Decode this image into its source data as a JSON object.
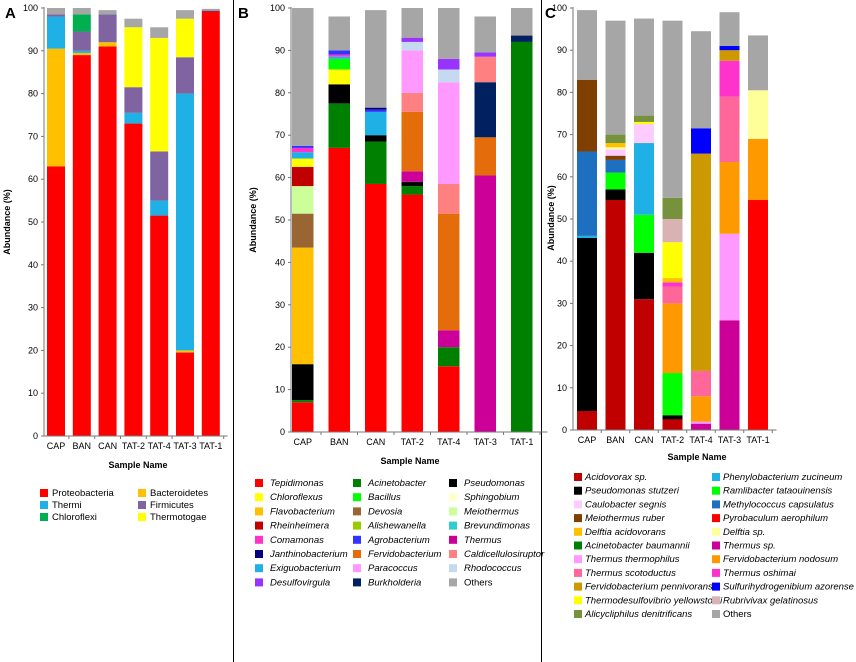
{
  "categories": [
    "CAP",
    "BAN",
    "CAN",
    "TAT-2",
    "TAT-4",
    "TAT-3",
    "TAT-1"
  ],
  "chart_data": [
    {
      "panel": "A",
      "type": "bar",
      "stacked": true,
      "ylabel": "Abundance (%)",
      "xlabel": "Sample Name",
      "ylim": [
        0,
        100
      ],
      "yticks": [
        0,
        10,
        20,
        30,
        40,
        50,
        60,
        70,
        80,
        90,
        100
      ],
      "grid": false,
      "legend_position": "bottom",
      "categories": [
        "CAP",
        "BAN",
        "CAN",
        "TAT-2",
        "TAT-4",
        "TAT-3",
        "TAT-1"
      ],
      "series": [
        {
          "name": "Proteobacteria",
          "color": "#ff0000",
          "values": [
            63,
            89,
            91,
            73,
            51.5,
            19.5,
            99.3
          ]
        },
        {
          "name": "Bacteroidetes",
          "color": "#ffc000",
          "values": [
            27.5,
            0.5,
            1,
            0,
            0,
            0.5,
            0
          ]
        },
        {
          "name": "Thermi",
          "color": "#1fb1e6",
          "values": [
            7.5,
            0.5,
            0,
            2.5,
            3.5,
            60,
            0.2
          ]
        },
        {
          "name": "Firmicutes",
          "color": "#8064a2",
          "values": [
            0.5,
            4.5,
            6.5,
            6,
            11.5,
            8.5,
            0
          ]
        },
        {
          "name": "Chloroflexi",
          "color": "#00b050",
          "values": [
            0,
            4,
            0,
            0,
            0,
            0,
            0
          ]
        },
        {
          "name": "Thermotogae",
          "color": "#ffff00",
          "values": [
            0,
            0,
            0,
            14,
            26.5,
            9,
            0
          ]
        },
        {
          "name": "Others",
          "color": "#a6a6a6",
          "values": [
            1.5,
            1.5,
            1,
            2,
            2.5,
            2,
            0.3
          ]
        }
      ],
      "legend": [
        "Proteobacteria",
        "Bacteroidetes",
        "Thermi",
        "Firmicutes",
        "Chloroflexi",
        "Thermotogae"
      ]
    },
    {
      "panel": "B",
      "type": "bar",
      "stacked": true,
      "ylabel": "Abundance (%)",
      "xlabel": "Sample Name",
      "ylim": [
        0,
        100
      ],
      "yticks": [
        0,
        10,
        20,
        30,
        40,
        50,
        60,
        70,
        80,
        90,
        100
      ],
      "grid": false,
      "legend_position": "bottom",
      "categories": [
        "CAP",
        "BAN",
        "CAN",
        "TAT-2",
        "TAT-4",
        "TAT-3",
        "TAT-1"
      ],
      "series": [
        {
          "name": "Tepidimonas",
          "color": "#ff0000",
          "values": [
            7,
            67,
            58.5,
            56,
            15.5,
            0,
            0
          ]
        },
        {
          "name": "Acinetobacter",
          "color": "#008000",
          "values": [
            0.5,
            10.5,
            10,
            2,
            4.5,
            0,
            92
          ]
        },
        {
          "name": "Pseudomonas",
          "color": "#000000",
          "values": [
            8.5,
            4.5,
            1.5,
            1,
            0,
            0,
            0
          ]
        },
        {
          "name": "Thermus",
          "color": "#cc0099",
          "values": [
            0,
            0,
            0,
            2.5,
            4,
            60.5,
            0
          ]
        },
        {
          "name": "Flavobacterium",
          "color": "#ffc000",
          "values": [
            27.5,
            0,
            0,
            0,
            0,
            0,
            0
          ]
        },
        {
          "name": "Devosia",
          "color": "#996633",
          "values": [
            8,
            0,
            0,
            0,
            0,
            0,
            0
          ]
        },
        {
          "name": "Meiothermus",
          "color": "#ccff99",
          "values": [
            6.5,
            0,
            0,
            0,
            0,
            0,
            0
          ]
        },
        {
          "name": "Rheinheimera",
          "color": "#c00000",
          "values": [
            4.5,
            0,
            0,
            0,
            0,
            0,
            0
          ]
        },
        {
          "name": "Fervidobacterium",
          "color": "#e46c0a",
          "values": [
            0,
            0,
            0,
            14,
            27.5,
            9,
            0
          ]
        },
        {
          "name": "Burkholderia",
          "color": "#002060",
          "values": [
            0,
            0,
            0,
            0,
            0,
            13,
            1.5
          ]
        },
        {
          "name": "Caldicellulosiruptor",
          "color": "#ff8080",
          "values": [
            0,
            0,
            0,
            4.5,
            7,
            6,
            0
          ]
        },
        {
          "name": "Paracoccus",
          "color": "#ff99ff",
          "values": [
            0,
            0,
            0,
            10,
            24,
            0,
            0
          ]
        },
        {
          "name": "Rhodococcus",
          "color": "#c5d9f1",
          "values": [
            0,
            0,
            0,
            2,
            3,
            0,
            0
          ]
        },
        {
          "name": "Desulfovirgula",
          "color": "#9933ff",
          "values": [
            0,
            0,
            0,
            1,
            2.5,
            1,
            0
          ]
        },
        {
          "name": "Chloroflexus",
          "color": "#ffff00",
          "values": [
            2,
            3.5,
            0,
            0,
            0,
            0,
            0
          ]
        },
        {
          "name": "Bacillus",
          "color": "#00ff00",
          "values": [
            0,
            2.5,
            0,
            0,
            0,
            0,
            0
          ]
        },
        {
          "name": "Exiguobacterium",
          "color": "#1fb1e6",
          "values": [
            1.5,
            0.5,
            5.5,
            0,
            0,
            0,
            0
          ]
        },
        {
          "name": "Comamonas",
          "color": "#ff33cc",
          "values": [
            1,
            0.5,
            0,
            0,
            0,
            0,
            0
          ]
        },
        {
          "name": "Agrobacterium",
          "color": "#3333ff",
          "values": [
            0.5,
            1,
            0.5,
            0,
            0,
            0,
            0
          ]
        },
        {
          "name": "Janthinobacterium",
          "color": "#000080",
          "values": [
            0,
            0,
            0.5,
            0,
            0,
            0,
            0
          ]
        },
        {
          "name": "Sphingobium",
          "color": "#ffffcc",
          "values": [
            0,
            0,
            0,
            0,
            0,
            0,
            0
          ]
        },
        {
          "name": "Alishewanella",
          "color": "#99cc00",
          "values": [
            0,
            0,
            0,
            0,
            0,
            0,
            0
          ]
        },
        {
          "name": "Brevundimonas",
          "color": "#33cccc",
          "values": [
            0,
            0,
            0,
            0,
            0,
            0,
            0
          ]
        },
        {
          "name": "Others",
          "color": "#a6a6a6",
          "values": [
            32.5,
            8,
            23,
            7,
            12,
            8.5,
            6.5
          ]
        }
      ],
      "legend": [
        "Tepidimonas",
        "Acinetobacter",
        "Pseudomonas",
        "Chloroflexus",
        "Bacillus",
        "Sphingobium",
        "Flavobacterium",
        "Devosia",
        "Meiothermus",
        "Rheinheimera",
        "Alishewanella",
        "Brevundimonas",
        "Comamonas",
        "Agrobacterium",
        "Thermus",
        "Janthinobacterium",
        "Fervidobacterium",
        "Caldicellulosiruptor",
        "Exiguobacterium",
        "Paracoccus",
        "Rhodococcus",
        "Desulfovirgula",
        "Burkholderia",
        "Others"
      ]
    },
    {
      "panel": "C",
      "type": "bar",
      "stacked": true,
      "ylabel": "Abundance (%)",
      "xlabel": "Sample Name",
      "ylim": [
        0,
        100
      ],
      "yticks": [
        0,
        10,
        20,
        30,
        40,
        50,
        60,
        70,
        80,
        90,
        100
      ],
      "grid": false,
      "legend_position": "bottom",
      "categories": [
        "CAP",
        "BAN",
        "CAN",
        "TAT-2",
        "TAT-4",
        "TAT-3",
        "TAT-1"
      ],
      "series": [
        {
          "name": "Acidovorax sp.",
          "color": "#c00000",
          "values": [
            4.5,
            54.5,
            31,
            2.5,
            0,
            0,
            0
          ]
        },
        {
          "name": "Pyrobaculum aerophilum",
          "color": "#ff0000",
          "values": [
            0,
            0,
            0,
            0,
            0,
            0,
            54.5
          ]
        },
        {
          "name": "Pseudomonas stutzeri",
          "color": "#000000",
          "values": [
            41,
            2.5,
            11,
            1,
            0,
            0,
            0
          ]
        },
        {
          "name": "Acinetobacter baumannii",
          "color": "#008000",
          "values": [
            0,
            0,
            0,
            0,
            0,
            0,
            0
          ]
        },
        {
          "name": "Thermus sp.",
          "color": "#cc0099",
          "values": [
            0,
            0,
            0,
            0,
            1.5,
            26,
            0
          ]
        },
        {
          "name": "Ramlibacter tataouinensis",
          "color": "#00ff00",
          "values": [
            0,
            4,
            9,
            10,
            0,
            0,
            0
          ]
        },
        {
          "name": "Thermus thermophilus",
          "color": "#ff99ff",
          "values": [
            0,
            0,
            0,
            0,
            0.5,
            20.5,
            0
          ]
        },
        {
          "name": "Fervidobacterium nodosum",
          "color": "#ff9900",
          "values": [
            0,
            0,
            0,
            16.5,
            6,
            17,
            14.5
          ]
        },
        {
          "name": "Thermus scotoductus",
          "color": "#ff6699",
          "values": [
            0,
            0,
            0,
            4,
            6,
            15.5,
            0
          ]
        },
        {
          "name": "Phenylobacterium zucineum",
          "color": "#1fb1e6",
          "values": [
            0.5,
            0,
            17,
            0,
            0,
            0,
            0
          ]
        },
        {
          "name": "Methylococcus capsulatus",
          "color": "#1f6fc0",
          "values": [
            20,
            3,
            0,
            0,
            0,
            0,
            0
          ]
        },
        {
          "name": "Thermus oshimai",
          "color": "#ff33cc",
          "values": [
            0,
            0,
            0,
            1,
            0,
            8.5,
            0
          ]
        },
        {
          "name": "Fervidobacterium pennivorans",
          "color": "#cc9900",
          "values": [
            0,
            0,
            0,
            0,
            51.5,
            2.5,
            0
          ]
        },
        {
          "name": "Meiothermus ruber",
          "color": "#7f3f00",
          "values": [
            17,
            1,
            0,
            0,
            0,
            0,
            0
          ]
        },
        {
          "name": "Caulobacter segnis",
          "color": "#ffccff",
          "values": [
            0,
            1.5,
            4.5,
            0,
            0,
            0,
            0
          ]
        },
        {
          "name": "Delftia sp.",
          "color": "#ffff99",
          "values": [
            0,
            0.5,
            0,
            0,
            0,
            0,
            11.5
          ]
        },
        {
          "name": "Delftia acidovorans",
          "color": "#ffc000",
          "values": [
            0,
            1,
            0,
            1,
            0,
            0,
            0
          ]
        },
        {
          "name": "Sulfurihydrogenibium azorense",
          "color": "#0000ff",
          "values": [
            0,
            0,
            0,
            0,
            6,
            1,
            0
          ]
        },
        {
          "name": "Thermodesulfovibrio yellowstonii",
          "color": "#ffff00",
          "values": [
            0,
            0,
            0.5,
            8.5,
            0,
            0,
            0
          ]
        },
        {
          "name": "Rubrivivax gelatinosus",
          "color": "#d9b3b3",
          "values": [
            0,
            0,
            0,
            5.5,
            0,
            0,
            0
          ]
        },
        {
          "name": "Alicycliphilus denitrificans",
          "color": "#76923c",
          "values": [
            0,
            2,
            1.5,
            5,
            0,
            0,
            0
          ]
        },
        {
          "name": "Others",
          "color": "#a6a6a6",
          "values": [
            16.5,
            27,
            23,
            42,
            23,
            8,
            13
          ]
        }
      ],
      "legend": [
        "Acidovorax sp.",
        "Phenylobacterium zucineum",
        "Pseudomonas stutzeri",
        "Ramlibacter tataouinensis",
        "Caulobacter segnis",
        "Methylococcus capsulatus",
        "Meiothermus ruber",
        "Pyrobaculum aerophilum",
        "Delftia acidovorans",
        "Delftia sp.",
        "Acinetobacter baumannii",
        "Thermus sp.",
        "Thermus thermophilus",
        "Fervidobacterium nodosum",
        "Thermus scotoductus",
        "Thermus oshimai",
        "Fervidobacterium pennivorans",
        "Sulfurihydrogenibium azorense",
        "Thermodesulfovibrio yellowstonii",
        "Rubrivivax gelatinosus",
        "Alicycliphilus denitrificans",
        "Others"
      ]
    }
  ]
}
